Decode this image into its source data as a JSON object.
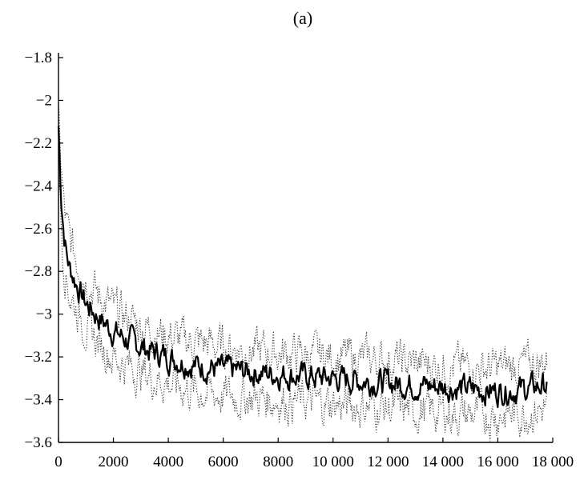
{
  "chart_data": {
    "type": "line",
    "title": "(a)",
    "xlabel": "",
    "ylabel": "",
    "xlim": [
      0,
      18000
    ],
    "ylim": [
      -3.6,
      -1.8
    ],
    "x_ticks": [
      0,
      2000,
      4000,
      6000,
      8000,
      10000,
      12000,
      14000,
      16000,
      18000
    ],
    "x_tick_labels": [
      "0",
      "2000",
      "4000",
      "6000",
      "8000",
      "10 000",
      "12 000",
      "14 000",
      "16 000",
      "18 000"
    ],
    "y_ticks": [
      -1.8,
      -2,
      -2.2,
      -2.4,
      -2.6,
      -2.8,
      -3,
      -3.2,
      -3.4,
      -3.6
    ],
    "y_tick_labels": [
      "−1.8",
      "−2",
      "−2.2",
      "−2.4",
      "−2.6",
      "−2.8",
      "−3",
      "−3.2",
      "−3.4",
      "−3.6"
    ],
    "grid": false,
    "legend": "none",
    "colors": {
      "mean": "#000000",
      "band": "#333333"
    },
    "x": [
      0,
      100,
      200,
      300,
      400,
      600,
      800,
      1000,
      1500,
      2000,
      2500,
      3000,
      3500,
      4000,
      4500,
      5000,
      6000,
      7000,
      8000,
      9000,
      10000,
      11000,
      12000,
      13000,
      14000,
      15000,
      16000,
      17000,
      17800
    ],
    "series": [
      {
        "style": "solid",
        "values": [
          -2.12,
          -2.45,
          -2.62,
          -2.72,
          -2.78,
          -2.84,
          -2.9,
          -2.95,
          -3.02,
          -3.08,
          -3.12,
          -3.15,
          -3.18,
          -3.2,
          -3.22,
          -3.24,
          -3.26,
          -3.27,
          -3.28,
          -3.29,
          -3.3,
          -3.31,
          -3.32,
          -3.33,
          -3.34,
          -3.35,
          -3.36,
          -3.35,
          -3.33
        ]
      },
      {
        "style": "dotted",
        "values": [
          -2.08,
          -2.32,
          -2.5,
          -2.6,
          -2.65,
          -2.72,
          -2.78,
          -2.83,
          -2.92,
          -2.98,
          -3.02,
          -3.05,
          -3.08,
          -3.1,
          -3.12,
          -3.13,
          -3.15,
          -3.17,
          -3.18,
          -3.19,
          -3.2,
          -3.21,
          -3.22,
          -3.23,
          -3.24,
          -3.25,
          -3.25,
          -3.24,
          -3.22
        ]
      },
      {
        "style": "dotted",
        "values": [
          -2.2,
          -2.6,
          -2.75,
          -2.84,
          -2.9,
          -2.96,
          -3.01,
          -3.06,
          -3.14,
          -3.2,
          -3.24,
          -3.27,
          -3.3,
          -3.32,
          -3.34,
          -3.36,
          -3.38,
          -3.39,
          -3.4,
          -3.41,
          -3.42,
          -3.43,
          -3.44,
          -3.45,
          -3.46,
          -3.47,
          -3.47,
          -3.46,
          -3.44
        ]
      }
    ]
  }
}
